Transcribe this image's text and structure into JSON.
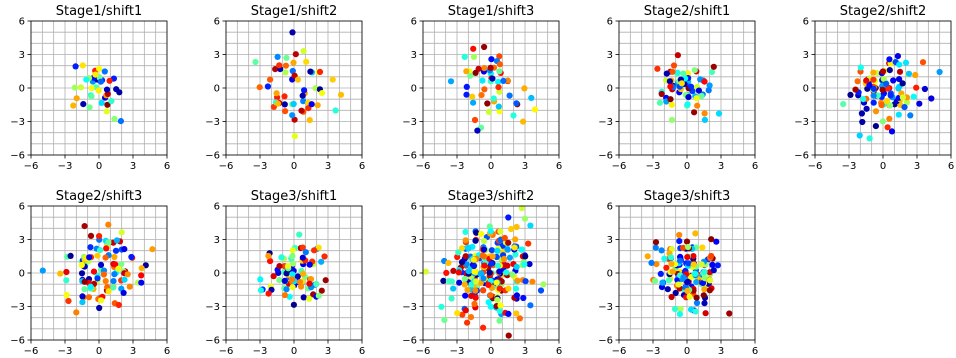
{
  "chart_data": {
    "type": "scatter",
    "layout": "2x5 grid of scatter subplots",
    "colormap": "jet",
    "grid": true,
    "xlim": [
      -6,
      6
    ],
    "ylim": [
      -6,
      6
    ],
    "xticks": [
      "−6",
      "−3",
      "0",
      "3",
      "6"
    ],
    "yticks": [
      "6",
      "3",
      "0",
      "−3",
      "−6"
    ],
    "panels": [
      {
        "title": "Stage1/shift1",
        "points": 40,
        "spread": 1.2,
        "seed": 11
      },
      {
        "title": "Stage1/shift2",
        "points": 55,
        "spread": 1.6,
        "seed": 23
      },
      {
        "title": "Stage1/shift3",
        "points": 55,
        "spread": 1.6,
        "seed": 37
      },
      {
        "title": "Stage2/shift1",
        "points": 70,
        "spread": 1.2,
        "seed": 41
      },
      {
        "title": "Stage2/shift2",
        "points": 110,
        "spread": 1.7,
        "seed": 53
      },
      {
        "title": "Stage2/shift3",
        "points": 110,
        "spread": 1.7,
        "seed": 67
      },
      {
        "title": "Stage3/shift1",
        "points": 90,
        "spread": 1.5,
        "seed": 71
      },
      {
        "title": "Stage3/shift2",
        "points": 260,
        "spread": 2.0,
        "seed": 83
      },
      {
        "title": "Stage3/shift3",
        "points": 170,
        "spread": 1.6,
        "seed": 97
      }
    ]
  }
}
